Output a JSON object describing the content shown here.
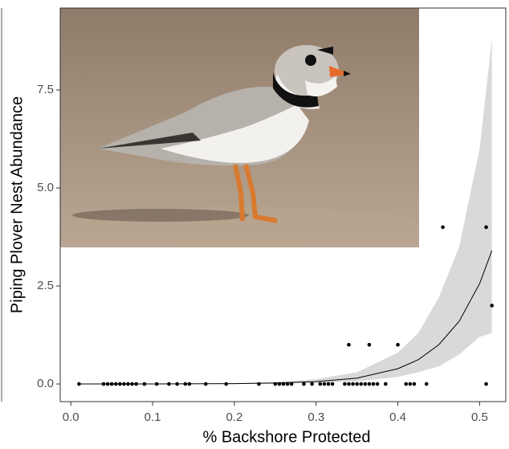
{
  "chart_data": {
    "type": "scatter",
    "x_label": "% Backshore Protected",
    "y_label": "Piping Plover Nest Abundance",
    "xlim": [
      -0.013,
      0.532
    ],
    "ylim": [
      -0.45,
      9.59
    ],
    "xticks": [
      {
        "value": 0,
        "label": "0.0"
      },
      0.1,
      0.2,
      0.3,
      0.4,
      0.5
    ],
    "yticks": [
      {
        "value": 0,
        "label": "0.0"
      },
      2.5,
      {
        "value": 5,
        "label": "5.0"
      },
      7.5
    ],
    "color": "#000000",
    "band_color": "#d9d9d9",
    "x": [
      0.01,
      0.04,
      0.045,
      0.05,
      0.055,
      0.06,
      0.065,
      0.07,
      0.075,
      0.08,
      0.09,
      0.105,
      0.12,
      0.13,
      0.14,
      0.145,
      0.165,
      0.19,
      0.23,
      0.25,
      0.255,
      0.26,
      0.265,
      0.27,
      0.285,
      0.295,
      0.305,
      0.31,
      0.315,
      0.32,
      0.335,
      0.34,
      0.345,
      0.35,
      0.355,
      0.36,
      0.365,
      0.37,
      0.375,
      0.385,
      0.41,
      0.415,
      0.42,
      0.435,
      0.508,
      0.34,
      0.365,
      0.4,
      0.455,
      0.508,
      0.515
    ],
    "values": [
      0,
      0,
      0,
      0,
      0,
      0,
      0,
      0,
      0,
      0,
      0,
      0,
      0,
      0,
      0,
      0,
      0,
      0,
      0,
      0,
      0,
      0,
      0,
      0,
      0,
      0,
      0,
      0,
      0,
      0,
      0,
      0,
      0,
      0,
      0,
      0,
      0,
      0,
      0,
      0,
      0,
      0,
      0,
      0,
      0,
      1,
      1,
      1,
      4,
      4,
      2
    ],
    "fit": {
      "x": [
        0.01,
        0.1,
        0.2,
        0.25,
        0.3,
        0.35,
        0.4,
        0.425,
        0.45,
        0.475,
        0.5,
        0.515
      ],
      "values": [
        0.0003,
        0.001,
        0.009,
        0.023,
        0.06,
        0.15,
        0.39,
        0.62,
        1.0,
        1.6,
        2.56,
        3.4
      ],
      "lower": [
        0,
        0,
        0.004,
        0.01,
        0.03,
        0.07,
        0.18,
        0.3,
        0.45,
        0.75,
        1.2,
        1.3
      ],
      "upper": [
        0.001,
        0.002,
        0.02,
        0.05,
        0.12,
        0.3,
        0.8,
        1.3,
        2.2,
        3.5,
        6.0,
        8.8
      ]
    }
  }
}
